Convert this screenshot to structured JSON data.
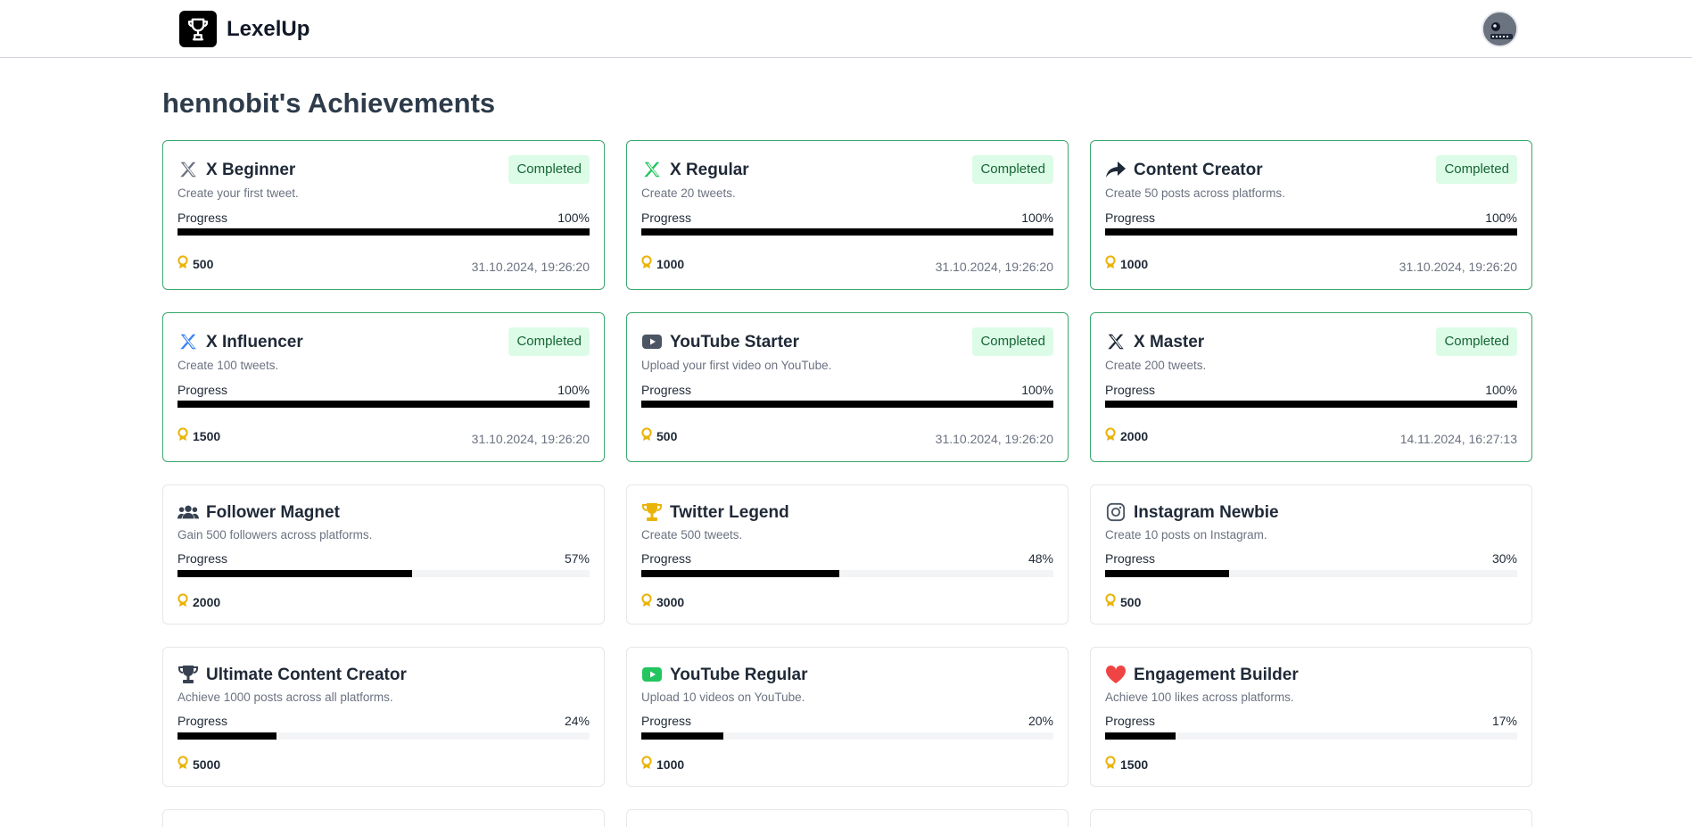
{
  "header": {
    "brand": "LexelUp",
    "logo_icon": "trophy-icon",
    "avatar_icon": "avatar"
  },
  "page": {
    "title": "hennobit's Achievements"
  },
  "labels": {
    "progress": "Progress",
    "completed": "Completed"
  },
  "colors": {
    "completed_border": "#3aa76d",
    "badge_bg": "#dcfce7",
    "badge_text": "#166534",
    "progress_fill": "#000000",
    "points_icon": "#eab308"
  },
  "achievements": [
    {
      "title": "X Beginner",
      "description": "Create your first tweet.",
      "progress": "100%",
      "progress_value": 100,
      "points": "500",
      "date": "31.10.2024, 19:26:20",
      "icon": "x-logo-icon",
      "icon_color": "#6b7280",
      "completed": true
    },
    {
      "title": "X Regular",
      "description": "Create 20 tweets.",
      "progress": "100%",
      "progress_value": 100,
      "points": "1000",
      "date": "31.10.2024, 19:26:20",
      "icon": "x-logo-icon",
      "icon_color": "#22c55e",
      "completed": true
    },
    {
      "title": "Content Creator",
      "description": "Create 50 posts across platforms.",
      "progress": "100%",
      "progress_value": 100,
      "points": "1000",
      "date": "31.10.2024, 19:26:20",
      "icon": "share-arrow-icon",
      "icon_color": "#1f2937",
      "completed": true
    },
    {
      "title": "X Influencer",
      "description": "Create 100 tweets.",
      "progress": "100%",
      "progress_value": 100,
      "points": "1500",
      "date": "31.10.2024, 19:26:20",
      "icon": "x-logo-icon",
      "icon_color": "#3b82f6",
      "completed": true
    },
    {
      "title": "YouTube Starter",
      "description": "Upload your first video on YouTube.",
      "progress": "100%",
      "progress_value": 100,
      "points": "500",
      "date": "31.10.2024, 19:26:20",
      "icon": "youtube-icon",
      "icon_color": "#4b5563",
      "completed": true
    },
    {
      "title": "X Master",
      "description": "Create 200 tweets.",
      "progress": "100%",
      "progress_value": 100,
      "points": "2000",
      "date": "14.11.2024, 16:27:13",
      "icon": "x-logo-icon",
      "icon_color": "#1f2937",
      "completed": true
    },
    {
      "title": "Follower Magnet",
      "description": "Gain 500 followers across platforms.",
      "progress": "57%",
      "progress_value": 57,
      "points": "2000",
      "date": "",
      "icon": "users-icon",
      "icon_color": "#374151",
      "completed": false
    },
    {
      "title": "Twitter Legend",
      "description": "Create 500 tweets.",
      "progress": "48%",
      "progress_value": 48,
      "points": "3000",
      "date": "",
      "icon": "trophy-icon",
      "icon_color": "#eab308",
      "completed": false
    },
    {
      "title": "Instagram Newbie",
      "description": "Create 10 posts on Instagram.",
      "progress": "30%",
      "progress_value": 30,
      "points": "500",
      "date": "",
      "icon": "instagram-icon",
      "icon_color": "#4b5563",
      "completed": false
    },
    {
      "title": "Ultimate Content Creator",
      "description": "Achieve 1000 posts across all platforms.",
      "progress": "24%",
      "progress_value": 24,
      "points": "5000",
      "date": "",
      "icon": "trophy-icon",
      "icon_color": "#374151",
      "completed": false
    },
    {
      "title": "YouTube Regular",
      "description": "Upload 10 videos on YouTube.",
      "progress": "20%",
      "progress_value": 20,
      "points": "1000",
      "date": "",
      "icon": "youtube-icon",
      "icon_color": "#22c55e",
      "completed": false
    },
    {
      "title": "Engagement Builder",
      "description": "Achieve 100 likes across platforms.",
      "progress": "17%",
      "progress_value": 17,
      "points": "1500",
      "date": "",
      "icon": "heart-icon",
      "icon_color": "#ef4444",
      "completed": false
    }
  ]
}
